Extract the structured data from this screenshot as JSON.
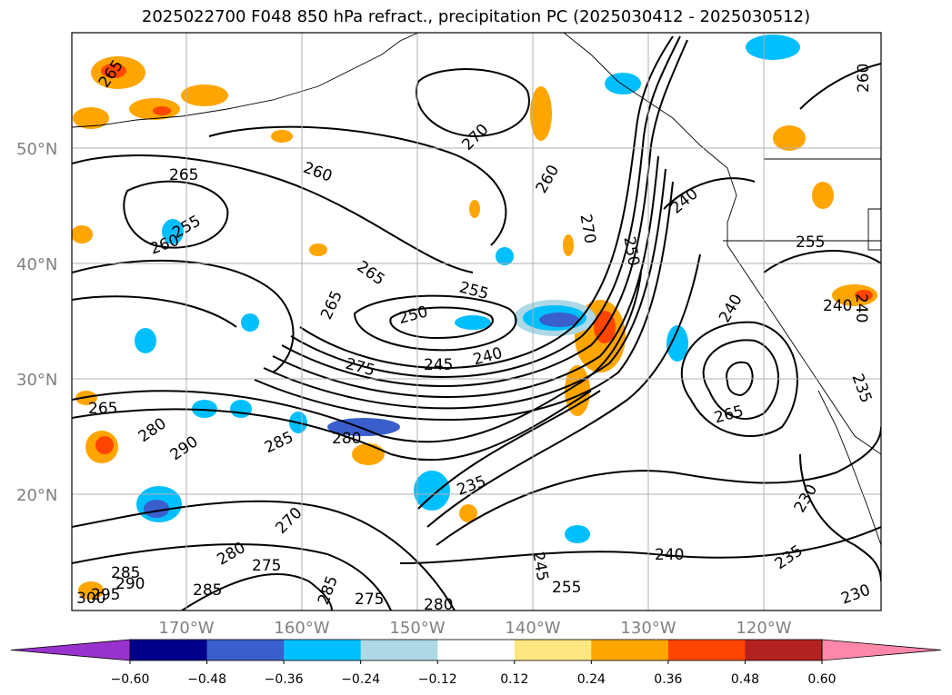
{
  "title": "2025022700 F048 850 hPa refract., precipitation PC (2025030412 - 2025030512)",
  "latitude_labels": [
    "50°N",
    "40°N",
    "30°N",
    "20°N"
  ],
  "longitude_labels": [
    "170°W",
    "160°W",
    "150°W",
    "140°W",
    "130°W",
    "120°W"
  ],
  "contour_labels": [
    {
      "text": "265"
    },
    {
      "text": "270"
    },
    {
      "text": "260"
    },
    {
      "text": "260"
    },
    {
      "text": "265"
    },
    {
      "text": "255"
    },
    {
      "text": "260"
    },
    {
      "text": "265"
    },
    {
      "text": "265"
    },
    {
      "text": "255"
    },
    {
      "text": "250"
    },
    {
      "text": "245"
    },
    {
      "text": "240"
    },
    {
      "text": "275"
    },
    {
      "text": "265"
    },
    {
      "text": "280"
    },
    {
      "text": "290"
    },
    {
      "text": "285"
    },
    {
      "text": "280"
    },
    {
      "text": "235"
    },
    {
      "text": "240"
    },
    {
      "text": "245"
    },
    {
      "text": "255"
    },
    {
      "text": "275"
    },
    {
      "text": "280"
    },
    {
      "text": "285"
    },
    {
      "text": "270"
    },
    {
      "text": "280"
    },
    {
      "text": "275"
    },
    {
      "text": "285"
    },
    {
      "text": "285"
    },
    {
      "text": "290"
    },
    {
      "text": "295"
    },
    {
      "text": "300"
    },
    {
      "text": "240"
    },
    {
      "text": "255"
    },
    {
      "text": "240"
    },
    {
      "text": "240"
    },
    {
      "text": "230"
    },
    {
      "text": "235"
    },
    {
      "text": "260"
    },
    {
      "text": "270"
    },
    {
      "text": "250"
    },
    {
      "text": "230"
    },
    {
      "text": "235"
    },
    {
      "text": "265"
    },
    {
      "text": "240"
    }
  ],
  "colorbar": {
    "tick_labels": [
      "−0.60",
      "−0.48",
      "−0.36",
      "−0.24",
      "−0.12",
      "0.12",
      "0.24",
      "0.36",
      "0.48",
      "0.60"
    ],
    "colors": [
      "#9932cc",
      "#00008b",
      "#3a5fcd",
      "#00bfff",
      "#add8e6",
      "#ffffff",
      "#ffe680",
      "#ffa500",
      "#ff4500",
      "#b22222",
      "#ff88aa"
    ]
  }
}
